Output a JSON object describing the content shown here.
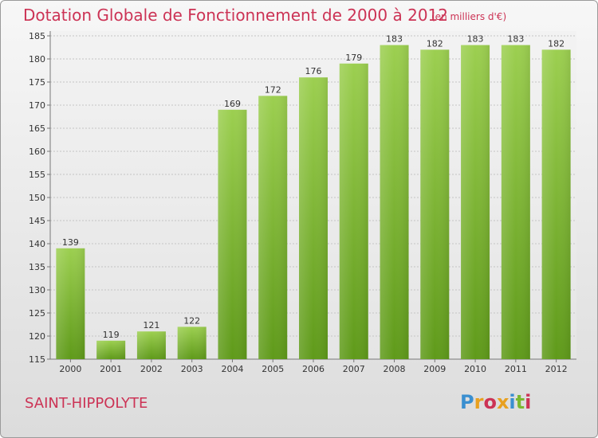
{
  "header": {
    "title": "Dotation Globale de Fonctionnement de 2000 à 2012",
    "unit": "(en milliers d'€)"
  },
  "footer": {
    "commune": "SAINT-HIPPOLYTE",
    "logo_text": "Proxiti",
    "logo_colors": [
      "#3a8fd0",
      "#e8a020",
      "#cc3355",
      "#e8a020",
      "#3a8fd0",
      "#7ab830",
      "#cc3355"
    ]
  },
  "chart_data": {
    "type": "bar",
    "title": "Dotation Globale de Fonctionnement de 2000 à 2012",
    "subtitle": "(en milliers d'€)",
    "xlabel": "",
    "ylabel": "",
    "categories": [
      "2000",
      "2001",
      "2002",
      "2003",
      "2004",
      "2005",
      "2006",
      "2007",
      "2008",
      "2009",
      "2010",
      "2011",
      "2012"
    ],
    "values": [
      139,
      119,
      121,
      122,
      169,
      172,
      176,
      179,
      183,
      182,
      183,
      183,
      182
    ],
    "ylim": [
      115,
      185
    ],
    "yticks": [
      115,
      120,
      125,
      130,
      135,
      140,
      145,
      150,
      155,
      160,
      165,
      170,
      175,
      180,
      185
    ],
    "grid": true,
    "legend": "none",
    "bar_color": "#7ab830"
  }
}
